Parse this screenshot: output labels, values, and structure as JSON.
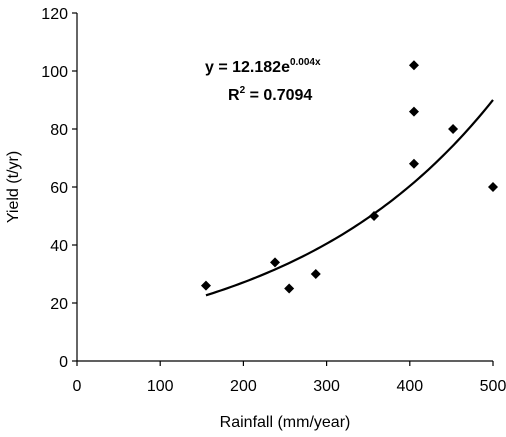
{
  "chart_data": {
    "type": "scatter",
    "title": "",
    "xlabel": "Rainfall (mm/year)",
    "ylabel": "Yield (t/yr)",
    "xlim": [
      0,
      500
    ],
    "ylim": [
      0,
      120
    ],
    "x_ticks": [
      0,
      100,
      200,
      300,
      400,
      500
    ],
    "y_ticks": [
      0,
      20,
      40,
      60,
      80,
      100,
      120
    ],
    "grid": false,
    "legend": "none",
    "marker": "diamond",
    "marker_color": "#000000",
    "points": [
      {
        "x": 155,
        "y": 26
      },
      {
        "x": 238,
        "y": 34
      },
      {
        "x": 255,
        "y": 25
      },
      {
        "x": 287,
        "y": 30
      },
      {
        "x": 357,
        "y": 50
      },
      {
        "x": 405,
        "y": 102
      },
      {
        "x": 405,
        "y": 86
      },
      {
        "x": 405,
        "y": 68
      },
      {
        "x": 452,
        "y": 80
      },
      {
        "x": 500,
        "y": 60
      }
    ],
    "trendline": {
      "type": "exponential",
      "a": 12.182,
      "b": 0.004,
      "x_range": [
        155,
        500
      ],
      "color": "#000000"
    },
    "annotations": {
      "equation": {
        "prefix": "y = 12.182e",
        "exponent": "0.004x"
      },
      "r_squared": {
        "prefix": "R",
        "exponent": "2",
        "suffix": " = 0.7094"
      }
    }
  }
}
